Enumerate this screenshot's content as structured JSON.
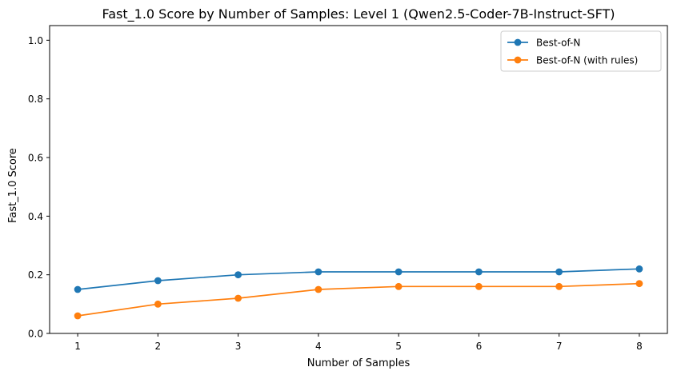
{
  "chart_data": {
    "type": "line",
    "title": "Fast_1.0 Score by Number of Samples: Level 1 (Qwen2.5-Coder-7B-Instruct-SFT)",
    "xlabel": "Number of Samples",
    "ylabel": "Fast_1.0 Score",
    "x": [
      1,
      2,
      3,
      4,
      5,
      6,
      7,
      8
    ],
    "xlim": [
      0.65,
      8.35
    ],
    "ylim": [
      0,
      1.05
    ],
    "xticks": [
      "1",
      "2",
      "3",
      "4",
      "5",
      "6",
      "7",
      "8"
    ],
    "yticks": [
      "0.0",
      "0.2",
      "0.4",
      "0.6",
      "0.8",
      "1.0"
    ],
    "grid": false,
    "legend_position": "top-right",
    "series": [
      {
        "name": "Best-of-N",
        "color": "#1f77b4",
        "values": [
          0.15,
          0.18,
          0.2,
          0.21,
          0.21,
          0.21,
          0.21,
          0.22
        ]
      },
      {
        "name": "Best-of-N (with rules)",
        "color": "#ff7f0e",
        "values": [
          0.06,
          0.1,
          0.12,
          0.15,
          0.16,
          0.16,
          0.16,
          0.17
        ]
      }
    ]
  }
}
